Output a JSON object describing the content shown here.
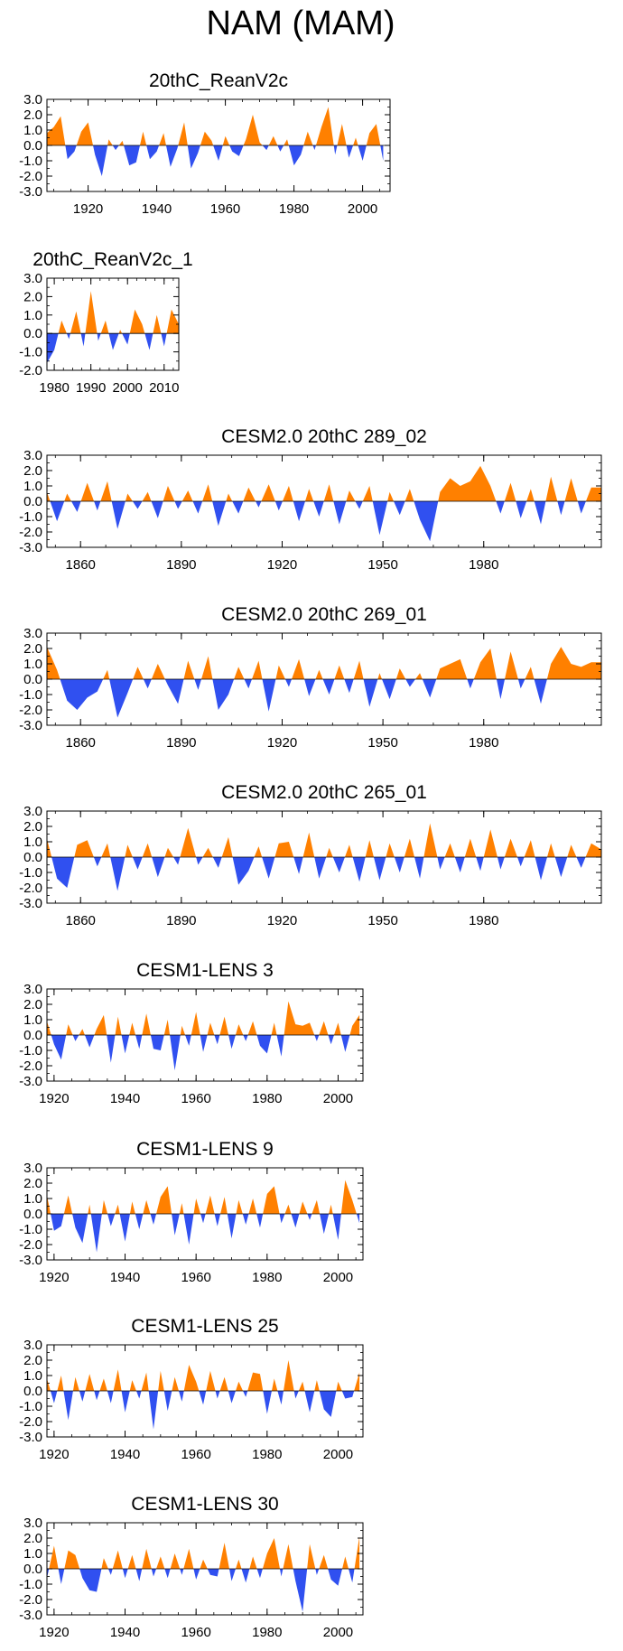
{
  "figure_title": "NAM (MAM)",
  "colors": {
    "positive": "#ff8000",
    "negative": "#3050f0",
    "axis": "#000000"
  },
  "chart_data": [
    {
      "type": "area",
      "title": "20thC_ReanV2c",
      "x_range": [
        1908,
        2008
      ],
      "ylim": [
        -3.0,
        3.0
      ],
      "yticks": [
        "3.0",
        "2.0",
        "1.0",
        "0.0",
        "-1.0",
        "-2.0",
        "-3.0"
      ],
      "xticks": [
        1920,
        1940,
        1960,
        1980,
        2000
      ],
      "series": [
        {
          "name": "NAM",
          "x": [
            1908,
            1910,
            1912,
            1914,
            1916,
            1918,
            1920,
            1922,
            1924,
            1926,
            1928,
            1930,
            1932,
            1934,
            1936,
            1938,
            1940,
            1942,
            1944,
            1946,
            1948,
            1950,
            1952,
            1954,
            1956,
            1958,
            1960,
            1962,
            1964,
            1966,
            1968,
            1970,
            1972,
            1974,
            1976,
            1978,
            1980,
            1982,
            1984,
            1986,
            1988,
            1990,
            1992,
            1994,
            1996,
            1998,
            2000,
            2002,
            2004,
            2006
          ],
          "values": [
            0.8,
            1.2,
            1.9,
            -0.9,
            -0.4,
            0.9,
            1.5,
            -0.6,
            -2.0,
            0.4,
            -0.3,
            0.3,
            -1.3,
            -1.1,
            0.9,
            -0.9,
            -0.4,
            0.8,
            -1.4,
            -0.2,
            1.5,
            -1.5,
            -0.5,
            0.9,
            0.3,
            -1.0,
            0.6,
            -0.4,
            -0.7,
            0.4,
            2.0,
            0.2,
            -0.3,
            0.6,
            -0.4,
            0.4,
            -1.3,
            -0.6,
            0.9,
            -0.3,
            1.2,
            2.5,
            -0.6,
            1.4,
            -0.8,
            0.5,
            -1.0,
            0.8,
            1.4,
            -1.0
          ]
        }
      ]
    },
    {
      "type": "area",
      "title": "20thC_ReanV2c_1",
      "x_range": [
        1978,
        2014
      ],
      "ylim": [
        -2.0,
        3.0
      ],
      "yticks": [
        "3.0",
        "2.0",
        "1.0",
        "0.0",
        "-1.0",
        "-2.0"
      ],
      "xticks": [
        1980,
        1990,
        2000,
        2010
      ],
      "series": [
        {
          "name": "NAM",
          "x": [
            1978,
            1980,
            1982,
            1984,
            1986,
            1988,
            1990,
            1992,
            1994,
            1996,
            1998,
            2000,
            2002,
            2004,
            2006,
            2008,
            2010,
            2012,
            2014
          ],
          "values": [
            -1.6,
            -0.9,
            0.7,
            -0.3,
            1.2,
            -0.7,
            2.3,
            -0.4,
            0.7,
            -0.9,
            0.2,
            -0.6,
            1.3,
            0.5,
            -0.9,
            1.0,
            -0.7,
            1.3,
            0.5
          ]
        }
      ]
    },
    {
      "type": "area",
      "title": "CESM2.0 20thC 289_02",
      "x_range": [
        1850,
        2015
      ],
      "ylim": [
        -3.0,
        3.0
      ],
      "yticks": [
        "3.0",
        "2.0",
        "1.0",
        "0.0",
        "-1.0",
        "-2.0",
        "-3.0"
      ],
      "xticks": [
        1860,
        1890,
        1920,
        1950,
        1980
      ],
      "series": [
        {
          "name": "NAM",
          "x": [
            1850,
            1853,
            1856,
            1859,
            1862,
            1865,
            1868,
            1871,
            1874,
            1877,
            1880,
            1883,
            1886,
            1889,
            1892,
            1895,
            1898,
            1901,
            1904,
            1907,
            1910,
            1913,
            1916,
            1919,
            1922,
            1925,
            1928,
            1931,
            1934,
            1937,
            1940,
            1943,
            1946,
            1949,
            1952,
            1955,
            1958,
            1961,
            1964,
            1967,
            1970,
            1973,
            1976,
            1979,
            1982,
            1985,
            1988,
            1991,
            1994,
            1997,
            2000,
            2003,
            2006,
            2009,
            2012,
            2015
          ],
          "values": [
            0.6,
            -1.3,
            0.5,
            -0.7,
            1.2,
            -0.6,
            1.3,
            -1.8,
            0.5,
            -0.5,
            0.6,
            -1.1,
            1.0,
            -0.5,
            0.7,
            -0.8,
            1.1,
            -1.6,
            0.5,
            -0.8,
            0.9,
            -0.4,
            1.1,
            -0.6,
            1.0,
            -1.3,
            0.8,
            -1.0,
            1.1,
            -1.5,
            0.7,
            -0.5,
            1.0,
            -2.2,
            0.6,
            -0.9,
            0.8,
            -1.2,
            -2.6,
            0.6,
            1.5,
            1.0,
            1.3,
            2.3,
            1.0,
            -0.8,
            1.2,
            -1.1,
            0.8,
            -1.5,
            1.6,
            -0.9,
            1.5,
            -0.8,
            0.9,
            0.9
          ]
        }
      ]
    },
    {
      "type": "area",
      "title": "CESM2.0 20thC 269_01",
      "x_range": [
        1850,
        2015
      ],
      "ylim": [
        -3.0,
        3.0
      ],
      "yticks": [
        "3.0",
        "2.0",
        "1.0",
        "0.0",
        "-1.0",
        "-2.0",
        "-3.0"
      ],
      "xticks": [
        1860,
        1890,
        1920,
        1950,
        1980
      ],
      "series": [
        {
          "name": "NAM",
          "x": [
            1850,
            1853,
            1856,
            1859,
            1862,
            1865,
            1868,
            1871,
            1874,
            1877,
            1880,
            1883,
            1886,
            1889,
            1892,
            1895,
            1898,
            1901,
            1904,
            1907,
            1910,
            1913,
            1916,
            1919,
            1922,
            1925,
            1928,
            1931,
            1934,
            1937,
            1940,
            1943,
            1946,
            1949,
            1952,
            1955,
            1958,
            1961,
            1964,
            1967,
            1970,
            1973,
            1976,
            1979,
            1982,
            1985,
            1988,
            1991,
            1994,
            1997,
            2000,
            2003,
            2006,
            2009,
            2012,
            2015
          ],
          "values": [
            2.1,
            0.6,
            -1.4,
            -2.0,
            -1.2,
            -0.8,
            0.6,
            -2.5,
            -0.9,
            0.8,
            -0.6,
            1.0,
            -0.4,
            -1.6,
            1.2,
            -0.7,
            1.5,
            -2.0,
            -1.0,
            0.8,
            -0.6,
            1.2,
            -2.1,
            0.9,
            -0.5,
            1.3,
            -1.1,
            0.6,
            -1.0,
            0.9,
            -0.9,
            1.2,
            -1.8,
            0.4,
            -1.3,
            0.7,
            -0.5,
            0.4,
            -1.2,
            0.7,
            1.0,
            1.3,
            -0.6,
            1.1,
            2.0,
            -1.3,
            1.8,
            -0.6,
            0.8,
            -1.6,
            1.0,
            2.1,
            1.0,
            0.8,
            1.1,
            1.1
          ]
        }
      ]
    },
    {
      "type": "area",
      "title": "CESM2.0 20thC 265_01",
      "x_range": [
        1850,
        2015
      ],
      "ylim": [
        -3.0,
        3.0
      ],
      "yticks": [
        "3.0",
        "2.0",
        "1.0",
        "0.0",
        "-1.0",
        "-2.0",
        "-3.0"
      ],
      "xticks": [
        1860,
        1890,
        1920,
        1950,
        1980
      ],
      "series": [
        {
          "name": "NAM",
          "x": [
            1850,
            1853,
            1856,
            1859,
            1862,
            1865,
            1868,
            1871,
            1874,
            1877,
            1880,
            1883,
            1886,
            1889,
            1892,
            1895,
            1898,
            1901,
            1904,
            1907,
            1910,
            1913,
            1916,
            1919,
            1922,
            1925,
            1928,
            1931,
            1934,
            1937,
            1940,
            1943,
            1946,
            1949,
            1952,
            1955,
            1958,
            1961,
            1964,
            1967,
            1970,
            1973,
            1976,
            1979,
            1982,
            1985,
            1988,
            1991,
            1994,
            1997,
            2000,
            2003,
            2006,
            2009,
            2012,
            2015
          ],
          "values": [
            1.2,
            -1.4,
            -2.0,
            0.8,
            1.1,
            -0.6,
            0.9,
            -2.2,
            0.8,
            -0.8,
            0.9,
            -1.3,
            0.6,
            -0.5,
            1.9,
            -0.5,
            0.6,
            -0.7,
            1.3,
            -1.8,
            -0.9,
            0.7,
            -1.4,
            0.9,
            1.0,
            -1.1,
            1.6,
            -1.4,
            0.6,
            -1.0,
            0.8,
            -1.6,
            1.1,
            -1.5,
            0.9,
            -1.0,
            1.2,
            -1.4,
            2.2,
            -0.8,
            0.9,
            -1.0,
            1.2,
            -0.9,
            1.8,
            -0.8,
            1.2,
            -0.6,
            1.1,
            -1.5,
            0.9,
            -1.3,
            0.8,
            -0.7,
            0.9,
            0.5
          ]
        }
      ]
    },
    {
      "type": "area",
      "title": "CESM1-LENS 3",
      "x_range": [
        1918,
        2007
      ],
      "ylim": [
        -3.0,
        3.0
      ],
      "yticks": [
        "3.0",
        "2.0",
        "1.0",
        "0.0",
        "-1.0",
        "-2.0",
        "-3.0"
      ],
      "xticks": [
        1920,
        1940,
        1960,
        1980,
        2000
      ],
      "series": [
        {
          "name": "NAM",
          "x": [
            1918,
            1920,
            1922,
            1924,
            1926,
            1928,
            1930,
            1932,
            1934,
            1936,
            1938,
            1940,
            1942,
            1944,
            1946,
            1948,
            1950,
            1952,
            1954,
            1956,
            1958,
            1960,
            1962,
            1964,
            1966,
            1968,
            1970,
            1972,
            1974,
            1976,
            1978,
            1980,
            1982,
            1984,
            1986,
            1988,
            1990,
            1992,
            1994,
            1996,
            1998,
            2000,
            2002,
            2004,
            2006
          ],
          "values": [
            0.9,
            -0.6,
            -1.6,
            0.7,
            -0.4,
            0.4,
            -0.8,
            0.4,
            1.3,
            -1.8,
            1.2,
            -1.2,
            0.8,
            -0.9,
            1.4,
            -0.9,
            -1.0,
            1.0,
            -2.3,
            0.6,
            -0.7,
            1.5,
            -1.1,
            0.8,
            -0.6,
            1.2,
            -0.9,
            0.7,
            -0.4,
            0.9,
            -0.7,
            -1.2,
            0.8,
            -1.4,
            2.2,
            0.7,
            0.6,
            0.8,
            -0.4,
            0.9,
            -0.6,
            0.8,
            -1.1,
            0.6,
            1.3
          ]
        }
      ]
    },
    {
      "type": "area",
      "title": "CESM1-LENS 9",
      "x_range": [
        1918,
        2007
      ],
      "ylim": [
        -3.0,
        3.0
      ],
      "yticks": [
        "3.0",
        "2.0",
        "1.0",
        "0.0",
        "-1.0",
        "-2.0",
        "-3.0"
      ],
      "xticks": [
        1920,
        1940,
        1960,
        1980,
        2000
      ],
      "series": [
        {
          "name": "NAM",
          "x": [
            1918,
            1920,
            1922,
            1924,
            1926,
            1928,
            1930,
            1932,
            1934,
            1936,
            1938,
            1940,
            1942,
            1944,
            1946,
            1948,
            1950,
            1952,
            1954,
            1956,
            1958,
            1960,
            1962,
            1964,
            1966,
            1968,
            1970,
            1972,
            1974,
            1976,
            1978,
            1980,
            1982,
            1984,
            1986,
            1988,
            1990,
            1992,
            1994,
            1996,
            1998,
            2000,
            2002,
            2004,
            2006
          ],
          "values": [
            1.2,
            -1.1,
            -0.8,
            1.2,
            -0.9,
            -1.9,
            0.6,
            -2.5,
            0.9,
            -0.8,
            0.6,
            -1.8,
            0.8,
            -1.0,
            0.9,
            -0.7,
            1.1,
            1.8,
            -1.4,
            0.7,
            -2.0,
            1.0,
            -0.6,
            1.2,
            -0.8,
            1.1,
            -1.6,
            0.9,
            -0.7,
            1.0,
            -0.9,
            1.3,
            1.8,
            -0.6,
            0.6,
            -0.9,
            0.8,
            -0.4,
            0.9,
            -1.3,
            0.6,
            -1.7,
            2.2,
            0.9,
            -0.6
          ]
        }
      ]
    },
    {
      "type": "area",
      "title": "CESM1-LENS 25",
      "x_range": [
        1918,
        2007
      ],
      "ylim": [
        -3.0,
        3.0
      ],
      "yticks": [
        "3.0",
        "2.0",
        "1.0",
        "0.0",
        "-1.0",
        "-2.0",
        "-3.0"
      ],
      "xticks": [
        1920,
        1940,
        1960,
        1980,
        2000
      ],
      "series": [
        {
          "name": "NAM",
          "x": [
            1918,
            1920,
            1922,
            1924,
            1926,
            1928,
            1930,
            1932,
            1934,
            1936,
            1938,
            1940,
            1942,
            1944,
            1946,
            1948,
            1950,
            1952,
            1954,
            1956,
            1958,
            1960,
            1962,
            1964,
            1966,
            1968,
            1970,
            1972,
            1974,
            1976,
            1978,
            1980,
            1982,
            1984,
            1986,
            1988,
            1990,
            1992,
            1994,
            1996,
            1998,
            2000,
            2002,
            2004,
            2006
          ],
          "values": [
            0.8,
            -0.8,
            1.0,
            -1.9,
            0.9,
            -0.7,
            1.1,
            -0.6,
            0.8,
            -0.8,
            1.4,
            -1.4,
            0.7,
            -0.5,
            1.2,
            -2.5,
            1.3,
            -1.3,
            0.9,
            -0.7,
            1.7,
            0.6,
            -0.9,
            1.3,
            -0.5,
            0.9,
            -0.8,
            0.6,
            -0.4,
            1.2,
            1.1,
            -1.5,
            0.8,
            -0.9,
            2.0,
            -0.5,
            0.6,
            -1.4,
            0.7,
            -1.2,
            -1.7,
            0.6,
            -0.5,
            -0.4,
            1.2
          ]
        }
      ]
    },
    {
      "type": "area",
      "title": "CESM1-LENS 30",
      "x_range": [
        1918,
        2007
      ],
      "ylim": [
        -3.0,
        3.0
      ],
      "yticks": [
        "3.0",
        "2.0",
        "1.0",
        "0.0",
        "-1.0",
        "-2.0",
        "-3.0"
      ],
      "xticks": [
        1920,
        1940,
        1960,
        1980,
        2000
      ],
      "series": [
        {
          "name": "NAM",
          "x": [
            1918,
            1920,
            1922,
            1924,
            1926,
            1928,
            1930,
            1932,
            1934,
            1936,
            1938,
            1940,
            1942,
            1944,
            1946,
            1948,
            1950,
            1952,
            1954,
            1956,
            1958,
            1960,
            1962,
            1964,
            1966,
            1968,
            1970,
            1972,
            1974,
            1976,
            1978,
            1980,
            1982,
            1984,
            1986,
            1988,
            1990,
            1992,
            1994,
            1996,
            1998,
            2000,
            2002,
            2004,
            2006
          ],
          "values": [
            -0.6,
            1.5,
            -1.0,
            1.2,
            0.9,
            -0.6,
            -1.4,
            -1.5,
            0.7,
            -0.4,
            1.2,
            -0.6,
            0.9,
            -0.8,
            1.3,
            -0.5,
            0.8,
            -0.6,
            1.0,
            -0.4,
            1.3,
            -0.7,
            0.6,
            -0.4,
            -0.5,
            1.7,
            -0.8,
            0.6,
            -0.9,
            0.8,
            -0.6,
            1.0,
            2.0,
            -0.5,
            1.6,
            -0.8,
            -2.8,
            1.6,
            -0.4,
            0.9,
            -0.7,
            -1.1,
            0.8,
            -0.9,
            2.1
          ]
        }
      ]
    }
  ]
}
